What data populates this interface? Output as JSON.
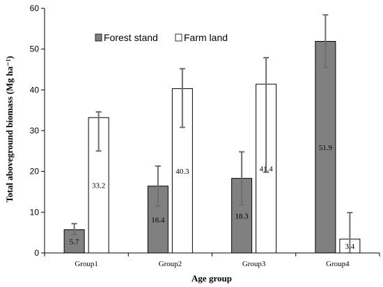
{
  "chart_data": {
    "type": "bar",
    "title": "",
    "xlabel": "Age group",
    "ylabel": "Total aboveground biomass (Mg ha⁻¹)",
    "ylim": [
      0,
      60
    ],
    "yticks": [
      0,
      10,
      20,
      30,
      40,
      50,
      60
    ],
    "grid": false,
    "legend_position": "top-center",
    "categories": [
      "Group1",
      "Group2",
      "Group3",
      "Group4"
    ],
    "series": [
      {
        "name": "Forest stand",
        "color": "#808080",
        "values": [
          5.7,
          16.4,
          18.3,
          51.9
        ],
        "labels": [
          "5.7",
          "16.4",
          "18.3",
          "51.9"
        ],
        "err_low": [
          4.5,
          11.5,
          11.8,
          45.5
        ],
        "err_high": [
          7.2,
          21.3,
          24.8,
          58.4
        ]
      },
      {
        "name": "Farm land",
        "color": "#ffffff",
        "values": [
          33.2,
          40.3,
          41.4,
          3.4
        ],
        "labels": [
          "33.2",
          "40.3",
          "41.4",
          "3.4"
        ],
        "err_low": [
          25.0,
          30.8,
          19.8,
          0.0
        ],
        "err_high": [
          34.6,
          45.2,
          47.9,
          9.9
        ]
      }
    ]
  }
}
